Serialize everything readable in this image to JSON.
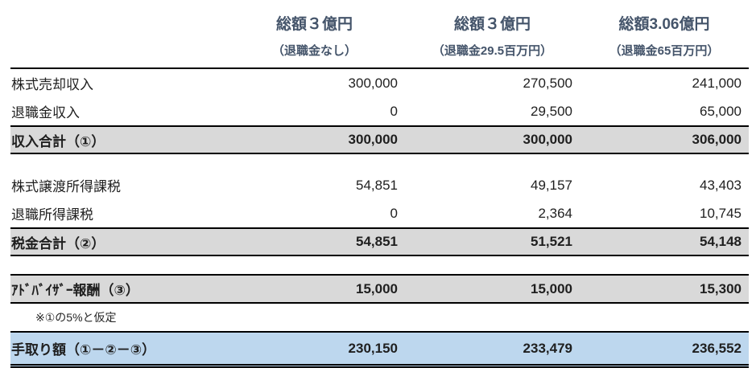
{
  "table": {
    "columns": [
      {
        "title": "総額３億円",
        "subtitle": "（退職金なし）"
      },
      {
        "title": "総額３億円",
        "subtitle": "（退職金29.5百万円）"
      },
      {
        "title": "総額3.06億円",
        "subtitle": "（退職金65百万円）"
      }
    ],
    "rows": {
      "stock_sale_income": {
        "label": "株式売却収入",
        "values": [
          "300,000",
          "270,500",
          "241,000"
        ]
      },
      "retirement_income": {
        "label": "退職金収入",
        "values": [
          "0",
          "29,500",
          "65,000"
        ]
      },
      "income_total": {
        "label": "収入合計（①）",
        "values": [
          "300,000",
          "300,000",
          "306,000"
        ]
      },
      "stock_transfer_tax": {
        "label": "株式譲渡所得課税",
        "values": [
          "54,851",
          "49,157",
          "43,403"
        ]
      },
      "retirement_tax": {
        "label": "退職所得課税",
        "values": [
          "0",
          "2,364",
          "10,745"
        ]
      },
      "tax_total": {
        "label": "税金合計（②）",
        "values": [
          "54,851",
          "51,521",
          "54,148"
        ]
      },
      "advisor_fee": {
        "label": "ｱﾄﾞﾊﾞｲｻﾞｰ報酬（③）",
        "values": [
          "15,000",
          "15,000",
          "15,300"
        ]
      },
      "net_amount": {
        "label": "手取り額（①－②－③）",
        "values": [
          "230,150",
          "233,479",
          "236,552"
        ]
      }
    },
    "note": "※①の5%と仮定"
  },
  "colors": {
    "subtotal_row_bg": "#D9D9D9",
    "net_row_bg": "#BDD7EE",
    "header_text": "#44546A",
    "body_text": "#1F1F1F",
    "border": "#000000"
  },
  "chart_data": {
    "type": "table",
    "columns": [
      "",
      "総額３億円（退職金なし）",
      "総額３億円（退職金29.5百万円）",
      "総額3.06億円（退職金65百万円）"
    ],
    "rows": [
      [
        "株式売却収入",
        300000,
        270500,
        241000
      ],
      [
        "退職金収入",
        0,
        29500,
        65000
      ],
      [
        "収入合計（①）",
        300000,
        300000,
        306000
      ],
      [
        "株式譲渡所得課税",
        54851,
        49157,
        43403
      ],
      [
        "退職所得課税",
        0,
        2364,
        10745
      ],
      [
        "税金合計（②）",
        54851,
        51521,
        54148
      ],
      [
        "ｱﾄﾞﾊﾞｲｻﾞｰ報酬（③）",
        15000,
        15000,
        15300
      ],
      [
        "手取り額（①－②－③）",
        230150,
        233479,
        236552
      ]
    ],
    "note": "※①の5%と仮定"
  }
}
